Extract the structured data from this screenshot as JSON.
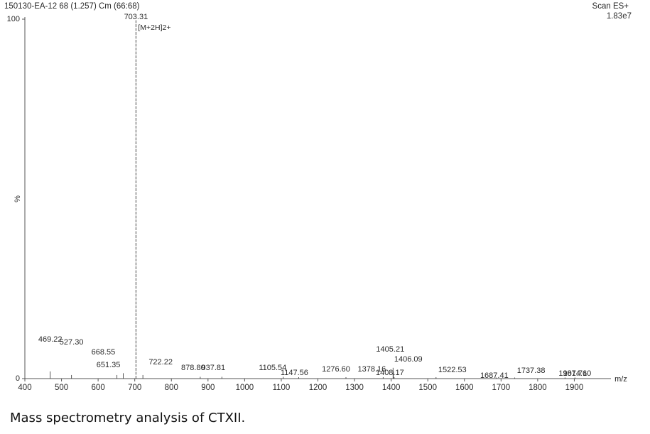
{
  "header": {
    "sample": "150130-EA-12 68 (1.257) Cm (66:68)",
    "scan_mode": "Scan ES+",
    "intensity": "1.83e7"
  },
  "chart_data": {
    "type": "bar",
    "xlabel": "m/z",
    "ylabel": "%",
    "xlim": [
      400,
      2000
    ],
    "ylim": [
      0,
      100
    ],
    "x_ticks": [
      400,
      500,
      600,
      700,
      800,
      900,
      1000,
      1100,
      1200,
      1300,
      1400,
      1500,
      1600,
      1700,
      1800,
      1900
    ],
    "y_ticks": [
      0,
      100
    ],
    "grid": false,
    "peaks": [
      {
        "mz": 469.22,
        "intensity": 2,
        "label": "469.22"
      },
      {
        "mz": 527.3,
        "intensity": 1,
        "label": "527.30"
      },
      {
        "mz": 651.35,
        "intensity": 1,
        "label": "651.35"
      },
      {
        "mz": 668.55,
        "intensity": 1.5,
        "label": "668.55"
      },
      {
        "mz": 703.31,
        "intensity": 100,
        "label": "703.31",
        "annotation": "[M+2H]2+"
      },
      {
        "mz": 722.22,
        "intensity": 1,
        "label": "722.22"
      },
      {
        "mz": 878.8,
        "intensity": 0.5,
        "label": "878.80"
      },
      {
        "mz": 937.81,
        "intensity": 0.5,
        "label": "937.81"
      },
      {
        "mz": 1105.54,
        "intensity": 0.5,
        "label": "1105.54"
      },
      {
        "mz": 1147.56,
        "intensity": 0.4,
        "label": "1147.56"
      },
      {
        "mz": 1276.6,
        "intensity": 0.4,
        "label": "1276.60"
      },
      {
        "mz": 1378.16,
        "intensity": 0.4,
        "label": "1378.16"
      },
      {
        "mz": 1405.21,
        "intensity": 3,
        "label": "1405.21"
      },
      {
        "mz": 1406.09,
        "intensity": 2,
        "label": "1406.09"
      },
      {
        "mz": 1408.17,
        "intensity": 0.4,
        "label": "1408.17"
      },
      {
        "mz": 1522.53,
        "intensity": 0.4,
        "label": "1522.53"
      },
      {
        "mz": 1687.41,
        "intensity": 0.3,
        "label": "1687.41"
      },
      {
        "mz": 1737.38,
        "intensity": 0.3,
        "label": "1737.38"
      },
      {
        "mz": 1874.6,
        "intensity": 0.3,
        "label": "1874.60"
      },
      {
        "mz": 1901.71,
        "intensity": 0.3,
        "label": "1901.71"
      }
    ]
  },
  "caption": "Mass spectrometry analysis of CTXII."
}
